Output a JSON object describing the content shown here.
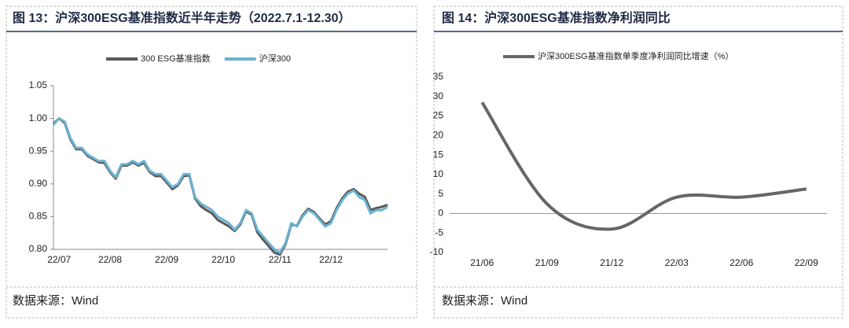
{
  "chart_data": [
    {
      "type": "line",
      "title": "图 13：沪深300ESG基准指数近半年走势（2022.7.1-12.30）",
      "source": "数据来源：Wind",
      "categories": [
        null,
        "22/07",
        null,
        null,
        null,
        null,
        null,
        null,
        null,
        null,
        "22/08",
        null,
        null,
        null,
        null,
        null,
        null,
        null,
        null,
        null,
        "22/09",
        null,
        null,
        null,
        null,
        null,
        null,
        null,
        null,
        null,
        "22/10",
        null,
        null,
        null,
        null,
        null,
        null,
        null,
        null,
        null,
        "22/11",
        null,
        null,
        null,
        null,
        null,
        null,
        null,
        null,
        "22/12",
        null,
        null,
        null,
        null,
        null,
        null,
        null,
        null,
        null,
        null
      ],
      "series": [
        {
          "name": "300 ESG基准指数",
          "color": "#595959",
          "values": [
            0.992,
            1.0,
            0.993,
            0.968,
            0.953,
            0.953,
            0.943,
            0.938,
            0.933,
            0.932,
            0.918,
            0.908,
            0.928,
            0.928,
            0.933,
            0.928,
            0.932,
            0.918,
            0.912,
            0.912,
            0.902,
            0.892,
            0.898,
            0.912,
            0.913,
            0.878,
            0.866,
            0.86,
            0.855,
            0.845,
            0.84,
            0.835,
            0.828,
            0.838,
            0.858,
            0.853,
            0.826,
            0.815,
            0.805,
            0.795,
            0.792,
            0.808,
            0.838,
            0.836,
            0.852,
            0.862,
            0.857,
            0.847,
            0.838,
            0.843,
            0.863,
            0.878,
            0.888,
            0.892,
            0.885,
            0.88,
            0.86,
            0.863,
            0.865,
            0.868
          ]
        },
        {
          "name": "沪深300",
          "color": "#6bb3d4",
          "values": [
            0.99,
            1.0,
            0.995,
            0.97,
            0.955,
            0.955,
            0.945,
            0.94,
            0.935,
            0.935,
            0.92,
            0.91,
            0.93,
            0.93,
            0.935,
            0.93,
            0.935,
            0.92,
            0.915,
            0.915,
            0.905,
            0.895,
            0.9,
            0.915,
            0.915,
            0.88,
            0.87,
            0.865,
            0.86,
            0.85,
            0.845,
            0.84,
            0.83,
            0.84,
            0.86,
            0.855,
            0.83,
            0.82,
            0.81,
            0.8,
            0.795,
            0.81,
            0.84,
            0.835,
            0.85,
            0.86,
            0.855,
            0.845,
            0.835,
            0.84,
            0.86,
            0.875,
            0.885,
            0.89,
            0.88,
            0.875,
            0.855,
            0.86,
            0.86,
            0.865
          ]
        }
      ],
      "ylim": [
        0.8,
        1.05
      ],
      "yticks": [
        {
          "value": 0.8,
          "label": "0.80"
        },
        0.85,
        {
          "value": 0.9,
          "label": "0.90"
        },
        0.95,
        {
          "value": 1,
          "label": "1.00"
        },
        1.05
      ]
    },
    {
      "type": "line",
      "title": "图 14：沪深300ESG基准指数净利润同比",
      "source": "数据来源：Wind",
      "smooth": true,
      "categories": [
        "21/06",
        "21/09",
        "21/12",
        "22/03",
        "22/06",
        "22/09"
      ],
      "series": [
        {
          "name": "沪深300ESG基准指数单季度净利润同比增速（%）",
          "color": "#666666",
          "values": [
            28.5,
            2.5,
            -4,
            4.2,
            4.2,
            6.3
          ]
        }
      ],
      "ylim": [
        -10,
        35
      ],
      "yticks": [
        -10,
        -5,
        0,
        5,
        10,
        15,
        20,
        25,
        30,
        35
      ]
    }
  ]
}
